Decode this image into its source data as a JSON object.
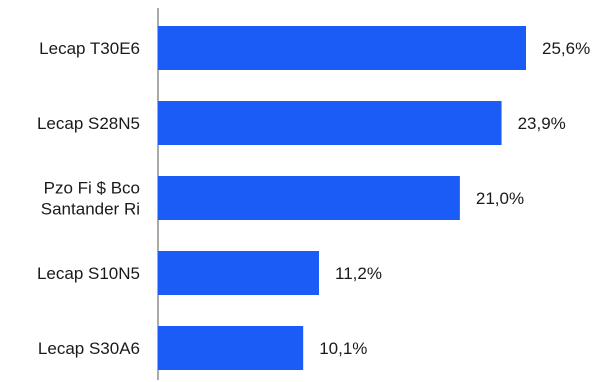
{
  "chart_data": {
    "type": "bar",
    "orientation": "horizontal",
    "categories": [
      [
        "Lecap T30E6"
      ],
      [
        "Lecap S28N5"
      ],
      [
        "Pzo Fi $ Bco",
        "Santander Ri"
      ],
      [
        "Lecap S10N5"
      ],
      [
        "Lecap S30A6"
      ]
    ],
    "values": [
      25.6,
      23.9,
      21.0,
      11.2,
      10.1
    ],
    "value_labels": [
      "25,6%",
      "23,9%",
      "21,0%",
      "11,2%",
      "10,1%"
    ],
    "title": "",
    "xlabel": "",
    "ylabel": "",
    "xlim": [
      0,
      25.6
    ],
    "grid": false,
    "legend": "none",
    "bar_color": "#1a5cf5",
    "axis_color": "#555555"
  }
}
